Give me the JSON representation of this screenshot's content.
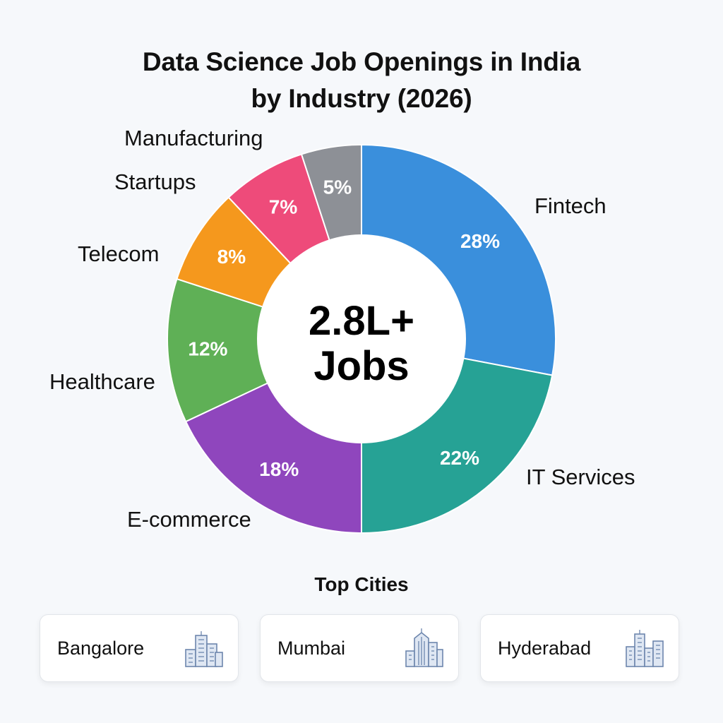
{
  "title_lines": [
    "Data Science Job Openings in India",
    "by Industry (2026)"
  ],
  "center_label": {
    "line1": "2.8L+",
    "line2": "Jobs"
  },
  "chart_data": {
    "type": "pie",
    "title": "Data Science Job Openings in India by Industry (2026)",
    "donut": true,
    "unit": "%",
    "slices": [
      {
        "label": "Fintech",
        "value": 28,
        "color": "#3a8fdc"
      },
      {
        "label": "IT Services",
        "value": 22,
        "color": "#26a295"
      },
      {
        "label": "E-commerce",
        "value": 18,
        "color": "#8f46bd"
      },
      {
        "label": "Healthcare",
        "value": 12,
        "color": "#5fb056"
      },
      {
        "label": "Telecom",
        "value": 8,
        "color": "#f5981d"
      },
      {
        "label": "Startups",
        "value": 7,
        "color": "#ee4b7a"
      },
      {
        "label": "Manufacturing",
        "value": 5,
        "color": "#8d9096"
      }
    ]
  },
  "top_cities": {
    "heading": "Top Cities",
    "cities": [
      {
        "name": "Bangalore",
        "icon": "city-skyline-icon"
      },
      {
        "name": "Mumbai",
        "icon": "city-skyline-icon"
      },
      {
        "name": "Hyderabad",
        "icon": "city-skyline-icon"
      }
    ]
  }
}
